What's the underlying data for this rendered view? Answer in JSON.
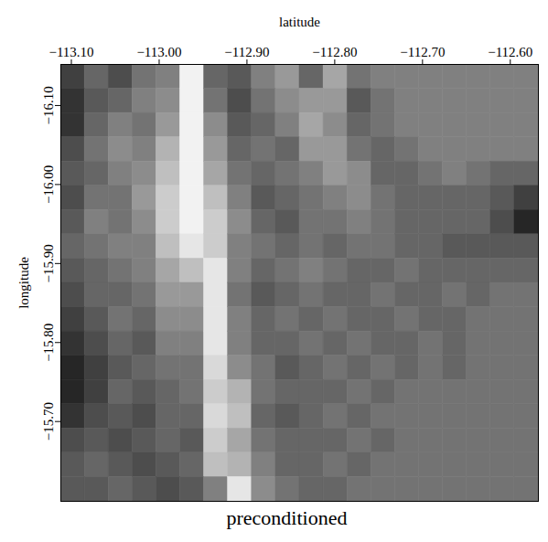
{
  "chart_data": {
    "type": "heatmap",
    "title": "preconditioned",
    "xlabel": "latitude",
    "ylabel": "longitude",
    "xlim": [
      -113.112,
      -112.568
    ],
    "ylim": [
      -16.152,
      -15.599
    ],
    "xticks": [
      -113.1,
      -113,
      -112.9,
      -112.8,
      -112.7,
      -112.6
    ],
    "yticks": [
      -16.1,
      -16,
      -15.9,
      -15.8,
      -15.7
    ],
    "cell_range": [
      0,
      1
    ],
    "cells": [
      [
        0.25,
        0.4,
        0.3,
        0.45,
        0.5,
        0.95,
        0.4,
        0.35,
        0.5,
        0.6,
        0.4,
        0.65,
        0.45,
        0.5,
        0.5,
        0.5,
        0.5,
        0.5,
        0.5,
        0.5
      ],
      [
        0.2,
        0.35,
        0.4,
        0.5,
        0.55,
        0.95,
        0.45,
        0.3,
        0.45,
        0.55,
        0.6,
        0.6,
        0.35,
        0.45,
        0.5,
        0.5,
        0.5,
        0.5,
        0.5,
        0.5
      ],
      [
        0.2,
        0.4,
        0.5,
        0.45,
        0.6,
        0.95,
        0.55,
        0.35,
        0.4,
        0.5,
        0.65,
        0.55,
        0.4,
        0.45,
        0.5,
        0.5,
        0.5,
        0.5,
        0.5,
        0.5
      ],
      [
        0.3,
        0.45,
        0.55,
        0.5,
        0.7,
        0.95,
        0.6,
        0.4,
        0.45,
        0.4,
        0.6,
        0.6,
        0.45,
        0.4,
        0.45,
        0.5,
        0.5,
        0.5,
        0.5,
        0.5
      ],
      [
        0.35,
        0.4,
        0.5,
        0.55,
        0.75,
        0.95,
        0.65,
        0.45,
        0.4,
        0.45,
        0.5,
        0.6,
        0.55,
        0.4,
        0.4,
        0.45,
        0.5,
        0.45,
        0.4,
        0.4
      ],
      [
        0.3,
        0.45,
        0.45,
        0.6,
        0.8,
        0.95,
        0.75,
        0.5,
        0.35,
        0.4,
        0.45,
        0.5,
        0.55,
        0.45,
        0.4,
        0.4,
        0.4,
        0.4,
        0.35,
        0.25
      ],
      [
        0.35,
        0.5,
        0.45,
        0.55,
        0.8,
        0.95,
        0.8,
        0.55,
        0.4,
        0.35,
        0.45,
        0.45,
        0.5,
        0.45,
        0.4,
        0.4,
        0.4,
        0.4,
        0.3,
        0.15
      ],
      [
        0.4,
        0.45,
        0.5,
        0.5,
        0.75,
        0.9,
        0.8,
        0.5,
        0.45,
        0.4,
        0.45,
        0.4,
        0.45,
        0.45,
        0.4,
        0.4,
        0.35,
        0.35,
        0.35,
        0.35
      ],
      [
        0.35,
        0.4,
        0.45,
        0.5,
        0.65,
        0.75,
        0.9,
        0.5,
        0.4,
        0.45,
        0.5,
        0.45,
        0.4,
        0.4,
        0.45,
        0.4,
        0.4,
        0.4,
        0.4,
        0.4
      ],
      [
        0.3,
        0.4,
        0.4,
        0.45,
        0.6,
        0.6,
        0.9,
        0.45,
        0.35,
        0.4,
        0.45,
        0.4,
        0.4,
        0.45,
        0.4,
        0.4,
        0.45,
        0.4,
        0.45,
        0.45
      ],
      [
        0.25,
        0.35,
        0.45,
        0.4,
        0.55,
        0.55,
        0.9,
        0.5,
        0.4,
        0.45,
        0.4,
        0.45,
        0.4,
        0.4,
        0.45,
        0.4,
        0.4,
        0.45,
        0.45,
        0.45
      ],
      [
        0.2,
        0.3,
        0.4,
        0.35,
        0.5,
        0.5,
        0.9,
        0.5,
        0.4,
        0.4,
        0.45,
        0.4,
        0.45,
        0.4,
        0.4,
        0.45,
        0.4,
        0.45,
        0.45,
        0.45
      ],
      [
        0.15,
        0.25,
        0.35,
        0.4,
        0.45,
        0.45,
        0.85,
        0.55,
        0.45,
        0.35,
        0.4,
        0.45,
        0.4,
        0.45,
        0.4,
        0.45,
        0.4,
        0.45,
        0.45,
        0.45
      ],
      [
        0.15,
        0.25,
        0.4,
        0.35,
        0.4,
        0.45,
        0.8,
        0.7,
        0.45,
        0.4,
        0.4,
        0.4,
        0.45,
        0.4,
        0.45,
        0.45,
        0.45,
        0.45,
        0.45,
        0.45
      ],
      [
        0.2,
        0.3,
        0.35,
        0.3,
        0.4,
        0.4,
        0.85,
        0.75,
        0.4,
        0.35,
        0.4,
        0.45,
        0.4,
        0.45,
        0.45,
        0.45,
        0.45,
        0.45,
        0.45,
        0.45
      ],
      [
        0.3,
        0.35,
        0.3,
        0.35,
        0.4,
        0.35,
        0.8,
        0.65,
        0.45,
        0.4,
        0.4,
        0.4,
        0.45,
        0.4,
        0.45,
        0.45,
        0.45,
        0.45,
        0.45,
        0.45
      ],
      [
        0.35,
        0.4,
        0.35,
        0.3,
        0.35,
        0.4,
        0.75,
        0.7,
        0.5,
        0.4,
        0.4,
        0.45,
        0.4,
        0.45,
        0.45,
        0.45,
        0.45,
        0.45,
        0.45,
        0.45
      ],
      [
        0.35,
        0.35,
        0.4,
        0.35,
        0.3,
        0.35,
        0.5,
        0.9,
        0.55,
        0.45,
        0.4,
        0.4,
        0.45,
        0.45,
        0.45,
        0.45,
        0.45,
        0.45,
        0.45,
        0.45
      ]
    ]
  }
}
